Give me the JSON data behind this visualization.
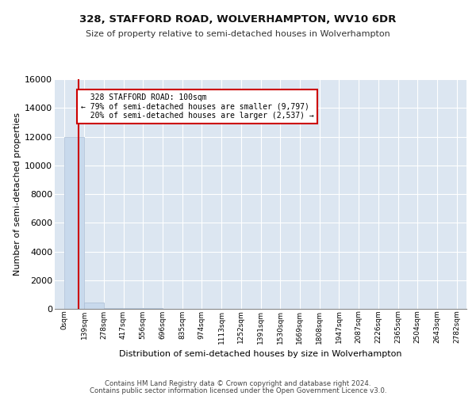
{
  "title": "328, STAFFORD ROAD, WOLVERHAMPTON, WV10 6DR",
  "subtitle": "Size of property relative to semi-detached houses in Wolverhampton",
  "xlabel": "Distribution of semi-detached houses by size in Wolverhampton",
  "ylabel": "Number of semi-detached properties",
  "property_size": 100,
  "property_label": "328 STAFFORD ROAD: 100sqm",
  "pct_smaller": 79,
  "count_smaller": 9797,
  "pct_larger": 20,
  "count_larger": 2537,
  "bin_width": 139,
  "num_bins": 20,
  "bar_color": "#c8d9ec",
  "bar_edgecolor": "#aabdd4",
  "line_color": "#cc0000",
  "annotation_facecolor": "#ffffff",
  "annotation_edgecolor": "#cc0000",
  "ylim": [
    0,
    16000
  ],
  "yticks": [
    0,
    2000,
    4000,
    6000,
    8000,
    10000,
    12000,
    14000,
    16000
  ],
  "background_color": "#dce6f1",
  "grid_color": "#ffffff",
  "footer_line1": "Contains HM Land Registry data © Crown copyright and database right 2024.",
  "footer_line2": "Contains public sector information licensed under the Open Government Licence v3.0.",
  "bar_heights": [
    12000,
    450,
    80,
    40,
    30,
    20,
    15,
    12,
    10,
    8,
    7,
    6,
    5,
    4,
    4,
    3,
    3,
    2,
    2,
    2
  ],
  "x_tick_labels": [
    "0sqm",
    "139sqm",
    "278sqm",
    "417sqm",
    "556sqm",
    "696sqm",
    "835sqm",
    "974sqm",
    "1113sqm",
    "1252sqm",
    "1391sqm",
    "1530sqm",
    "1669sqm",
    "1808sqm",
    "1947sqm",
    "2087sqm",
    "2226sqm",
    "2365sqm",
    "2504sqm",
    "2643sqm",
    "2782sqm"
  ]
}
